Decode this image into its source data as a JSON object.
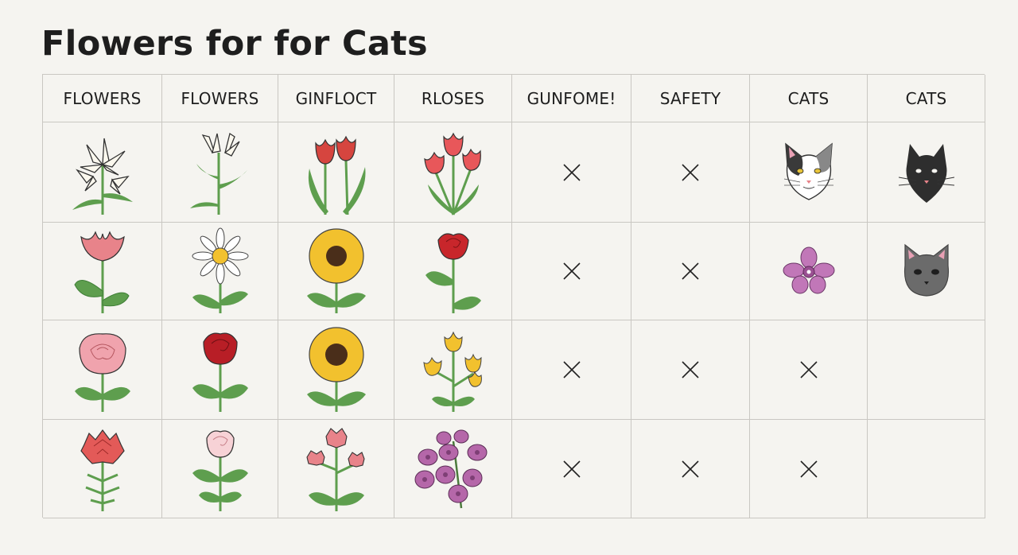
{
  "title": "Flowers for for Cats",
  "columns": [
    "FLOWERS",
    "FLOWERS",
    "GINFLOCT",
    "RLOSES",
    "GUNFOME!",
    "SAFETY",
    "CATS",
    "CATS"
  ],
  "rows": [
    [
      "white-lily-icon",
      "white-lily-icon",
      "red-tulip-icon",
      "red-tulip-icon",
      "x-mark-icon",
      "x-mark-icon",
      "calico-cat-face-icon",
      "black-cat-face-icon"
    ],
    [
      "pink-tulip-icon",
      "daisy-icon",
      "sunflower-icon",
      "red-rose-icon",
      "x-mark-icon",
      "x-mark-icon",
      "orchid-icon",
      "gray-cat-face-icon"
    ],
    [
      "pink-rose-icon",
      "red-rose-icon",
      "sunflower-icon",
      "yellow-flower-icon",
      "x-mark-icon",
      "x-mark-icon",
      "x-mark-icon",
      ""
    ],
    [
      "red-carnation-icon",
      "pink-rose-icon",
      "pink-carnation-icon",
      "purple-orchid-icon",
      "x-mark-icon",
      "x-mark-icon",
      "x-mark-icon",
      ""
    ]
  ],
  "colors": {
    "background": "#f5f4f0",
    "grid_line": "#c9c7c2",
    "leaf_green": "#5e9e4e",
    "red": "#d6453f",
    "pink": "#e8838a",
    "yellow": "#f2c12e",
    "orchid": "#c177b8"
  }
}
